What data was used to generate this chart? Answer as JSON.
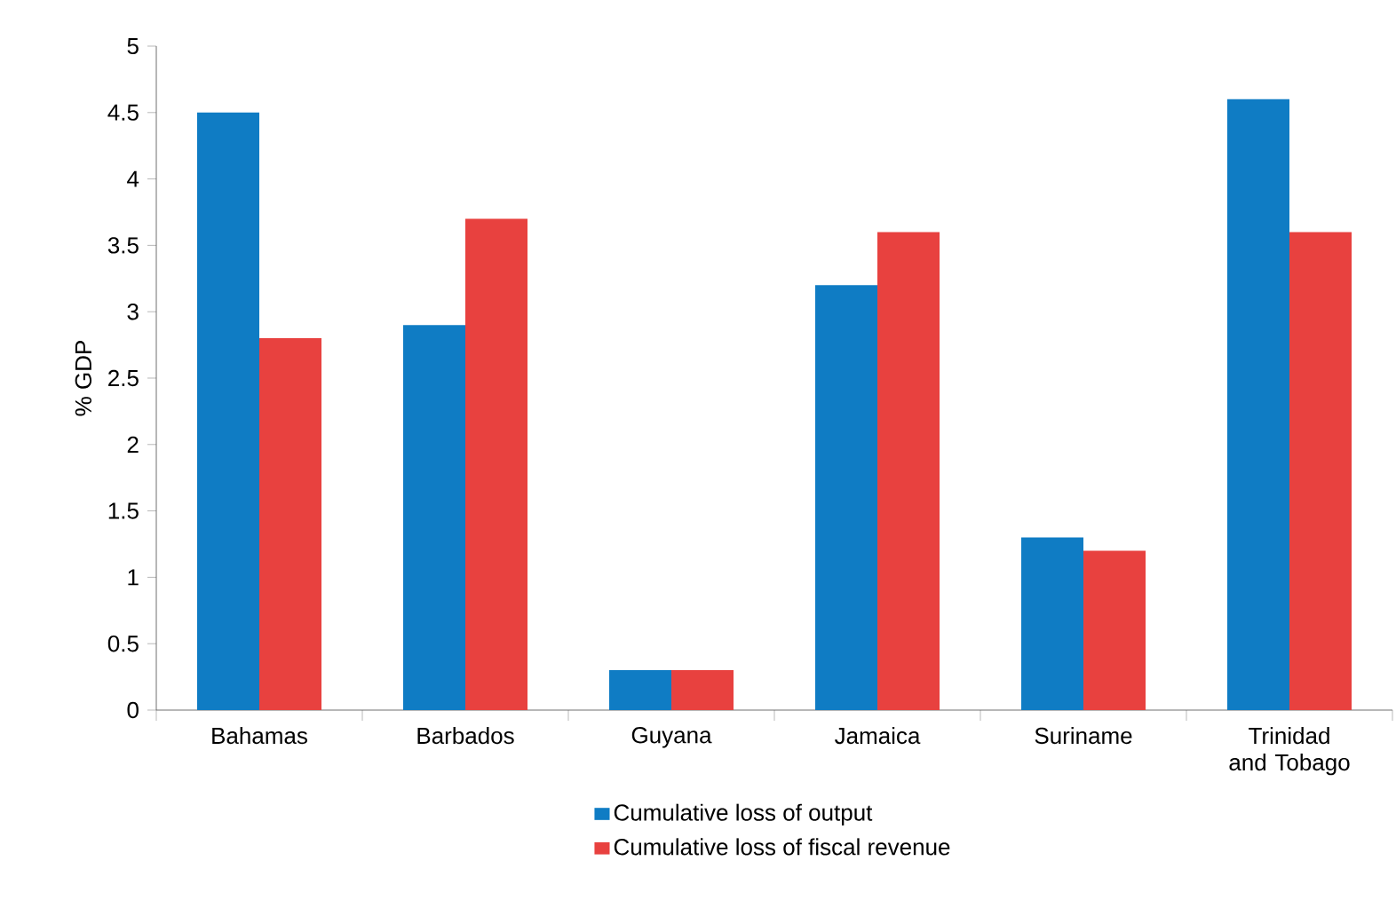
{
  "chart_data": {
    "type": "bar",
    "ylabel": "% GDP",
    "categories": [
      "Bahamas",
      "Barbados",
      "Guyana",
      "Jamaica",
      "Suriname",
      "Trinidad and Tobago"
    ],
    "series": [
      {
        "name": "Cumulative loss of output",
        "color": "#0f7cc4",
        "values": [
          4.5,
          2.9,
          0.3,
          3.2,
          1.3,
          4.6
        ]
      },
      {
        "name": "Cumulative loss of fiscal revenue",
        "color": "#e8413f",
        "values": [
          2.8,
          3.7,
          0.3,
          3.6,
          1.2,
          3.6
        ]
      }
    ],
    "ylim": [
      0,
      5
    ],
    "yticks": [
      0,
      0.5,
      1,
      1.5,
      2,
      2.5,
      3,
      3.5,
      4,
      4.5,
      5
    ],
    "grid": false,
    "legend": "bottom"
  }
}
